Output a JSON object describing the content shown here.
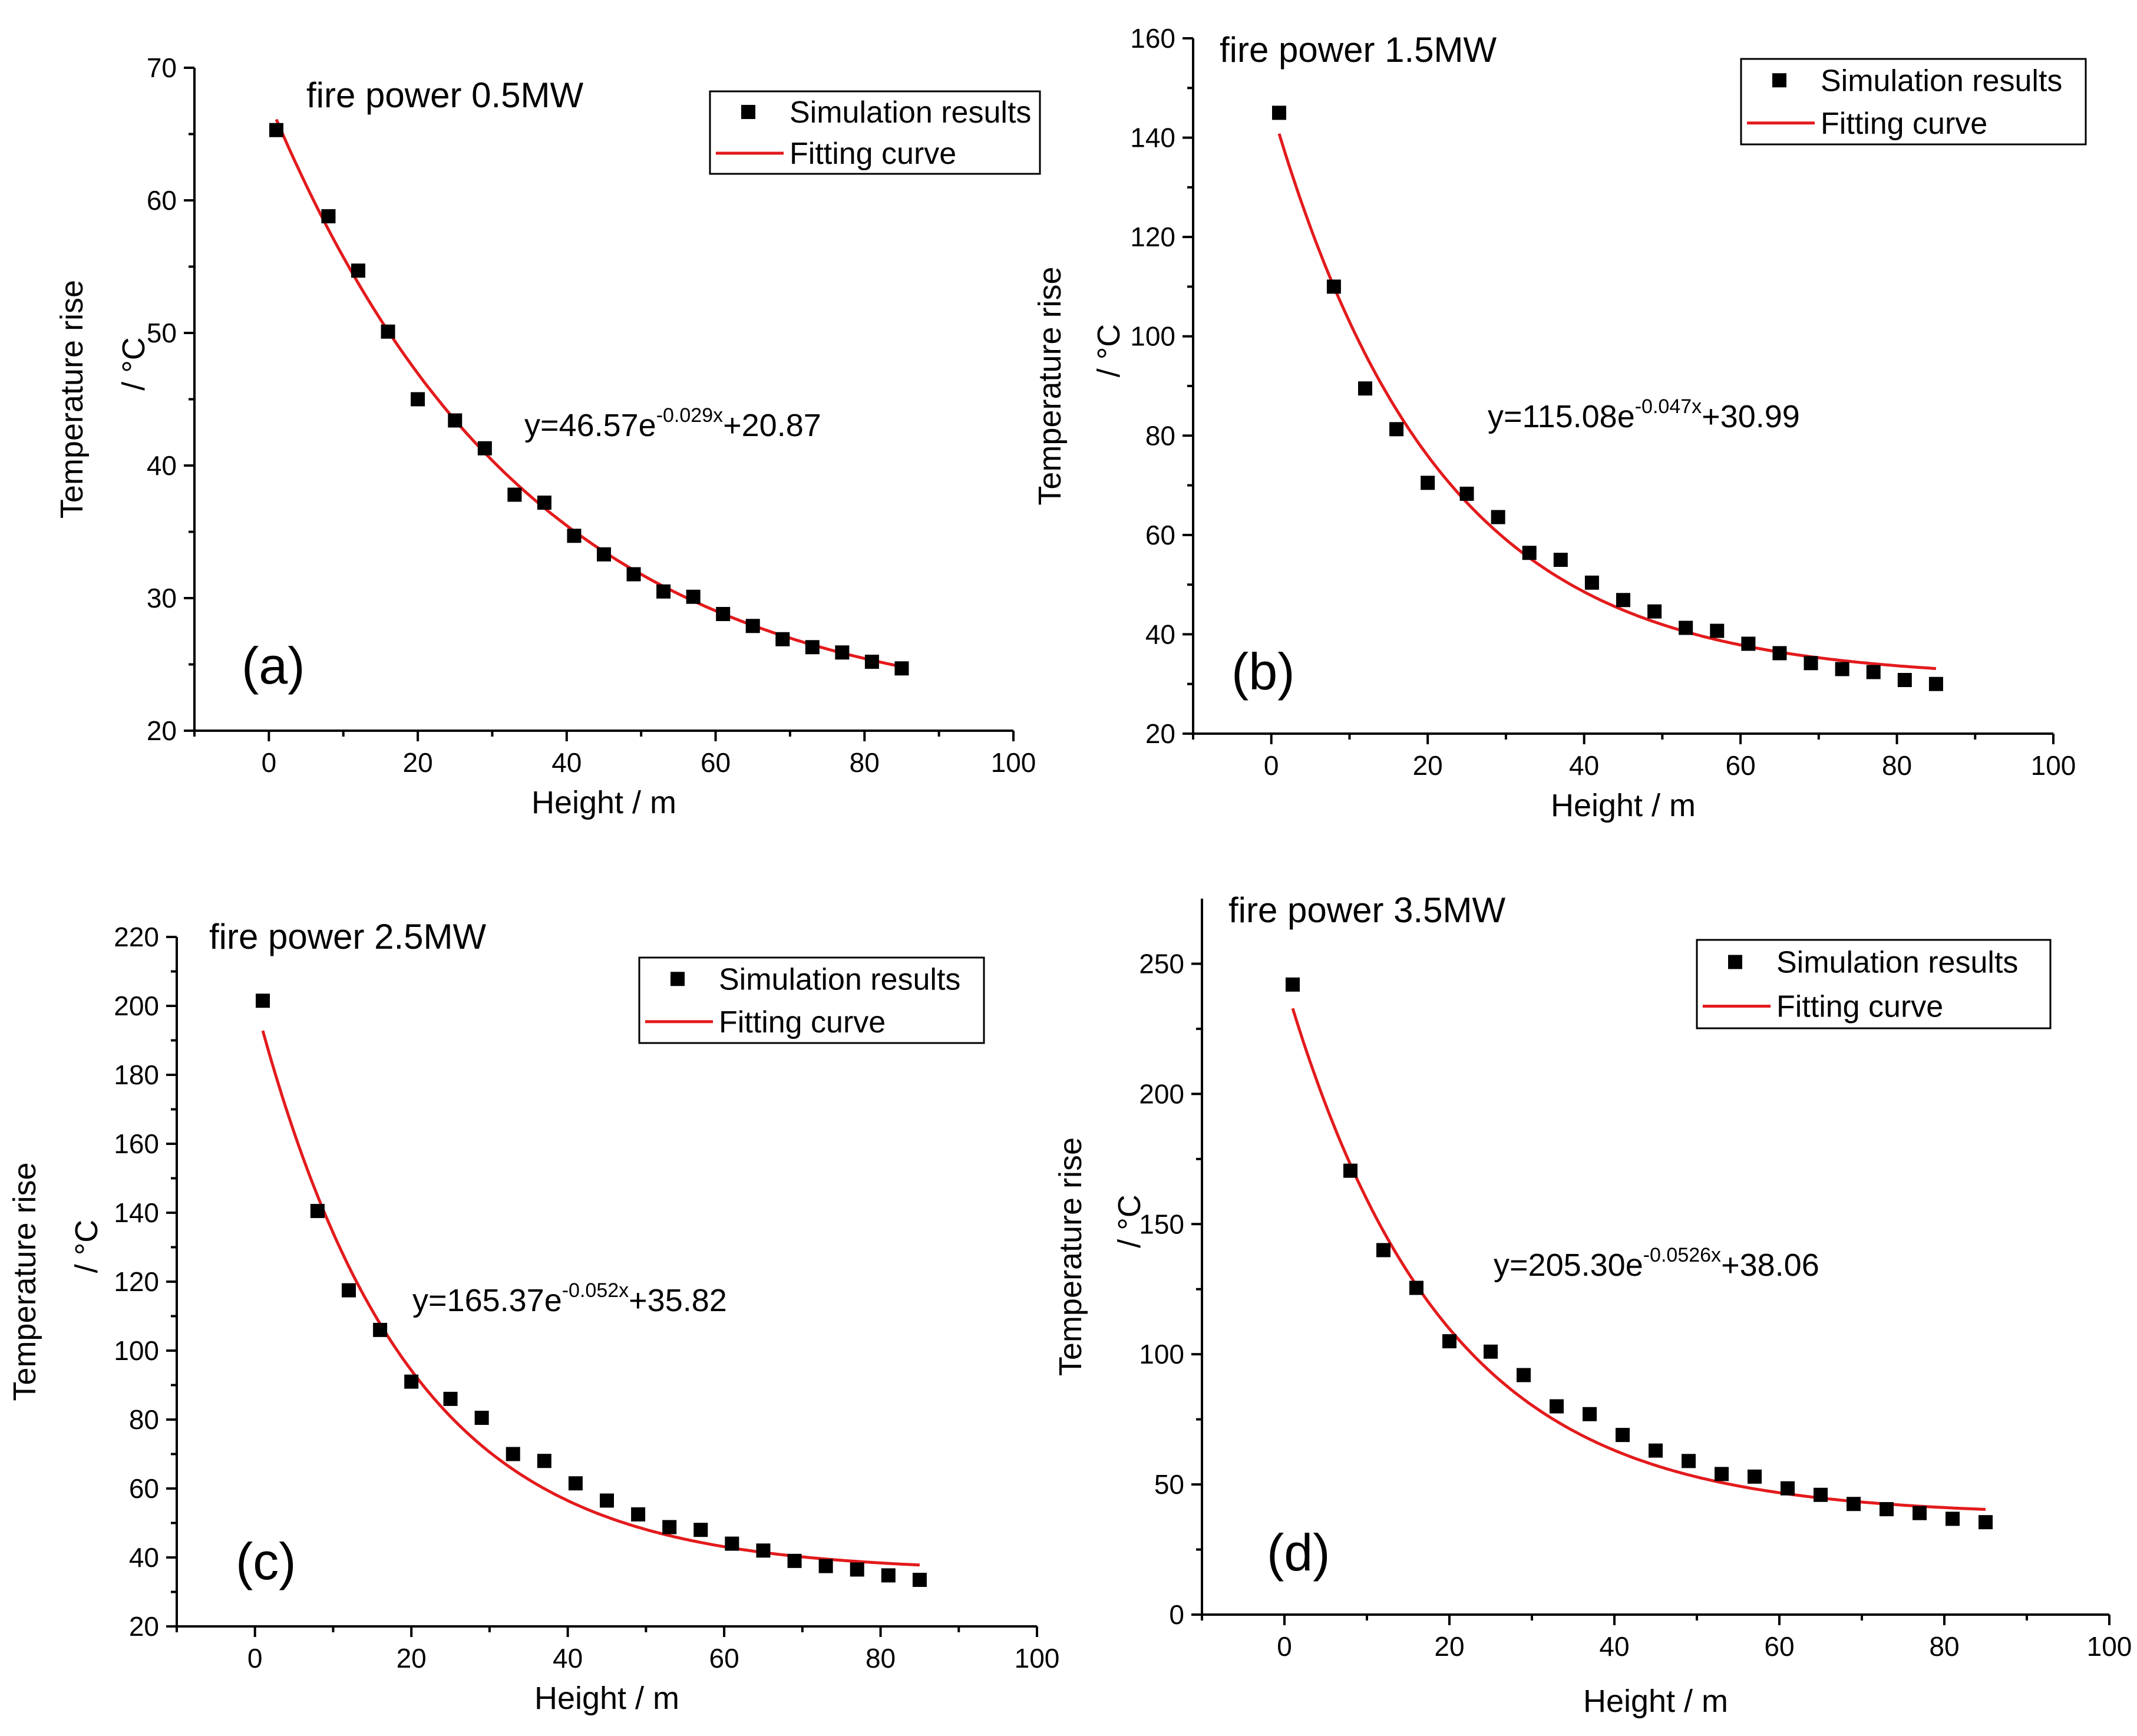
{
  "chart_data": [
    {
      "type": "scatter",
      "panel_label": "(a)",
      "title": "fire power  0.5MW",
      "xlabel": "Height / m",
      "ylabel": "Temperature rise",
      "yunit": "/ °C",
      "xlim": [
        -10,
        100
      ],
      "ylim": [
        20,
        70
      ],
      "xticks": [
        0,
        20,
        40,
        60,
        80,
        100
      ],
      "yticks": [
        20,
        30,
        40,
        50,
        60,
        70
      ],
      "legend": [
        "Simulation results",
        "Fitting curve"
      ],
      "equation": {
        "prefix": "y=46.57e",
        "exponent": "-0.029x",
        "suffix": "+20.87"
      },
      "fit": {
        "a": 46.57,
        "b": -0.029,
        "c": 20.87,
        "x_start": 1,
        "x_end": 85
      },
      "series": [
        {
          "name": "Simulation results",
          "x": [
            1,
            8,
            12,
            16,
            20,
            25,
            29,
            33,
            37,
            41,
            45,
            49,
            53,
            57,
            61,
            65,
            69,
            73,
            77,
            81,
            85
          ],
          "y": [
            65.3,
            58.8,
            54.7,
            50.1,
            45.0,
            43.4,
            41.3,
            37.8,
            37.2,
            34.7,
            33.3,
            31.8,
            30.5,
            30.1,
            28.8,
            27.9,
            26.9,
            26.3,
            25.9,
            25.2,
            24.7
          ]
        }
      ]
    },
    {
      "type": "scatter",
      "panel_label": "(b)",
      "title": "fire power  1.5MW",
      "xlabel": "Height / m",
      "ylabel": "Temperature rise",
      "yunit": "/ °C",
      "xlim": [
        -10,
        100
      ],
      "ylim": [
        20,
        160
      ],
      "xticks": [
        0,
        20,
        40,
        60,
        80,
        100
      ],
      "yticks": [
        20,
        40,
        60,
        80,
        100,
        120,
        140,
        160
      ],
      "legend": [
        "Simulation results",
        "Fitting curve"
      ],
      "equation": {
        "prefix": "y=115.08e",
        "exponent": "-0.047x",
        "suffix": "+30.99"
      },
      "fit": {
        "a": 115.08,
        "b": -0.047,
        "c": 30.99,
        "x_start": 1,
        "x_end": 85
      },
      "series": [
        {
          "name": "Simulation results",
          "x": [
            1,
            8,
            12,
            16,
            20,
            25,
            29,
            33,
            37,
            41,
            45,
            49,
            53,
            57,
            61,
            65,
            69,
            73,
            77,
            81,
            85
          ],
          "y": [
            145,
            110,
            89.5,
            81.3,
            70.5,
            68.3,
            63.6,
            56.4,
            55.0,
            50.4,
            46.9,
            44.6,
            41.3,
            40.7,
            38.1,
            36.2,
            34.2,
            33.0,
            32.4,
            30.8,
            30.0
          ]
        }
      ]
    },
    {
      "type": "scatter",
      "panel_label": "(c)",
      "title": "fire power  2.5MW",
      "xlabel": "Height / m",
      "ylabel": "Temperature rise",
      "yunit": "/ °C",
      "xlim": [
        -10,
        100
      ],
      "ylim": [
        20,
        220
      ],
      "xticks": [
        0,
        20,
        40,
        60,
        80,
        100
      ],
      "yticks": [
        20,
        40,
        60,
        80,
        100,
        120,
        140,
        160,
        180,
        200,
        220
      ],
      "legend": [
        "Simulation results",
        "Fitting curve"
      ],
      "equation": {
        "prefix": "y=165.37e",
        "exponent": "-0.052x",
        "suffix": "+35.82"
      },
      "fit": {
        "a": 165.37,
        "b": -0.052,
        "c": 35.82,
        "x_start": 1,
        "x_end": 85
      },
      "series": [
        {
          "name": "Simulation results",
          "x": [
            1,
            8,
            12,
            16,
            20,
            25,
            29,
            33,
            37,
            41,
            45,
            49,
            53,
            57,
            61,
            65,
            69,
            73,
            77,
            81,
            85
          ],
          "y": [
            201.5,
            140.5,
            117.5,
            106.0,
            91.0,
            86.0,
            80.5,
            70.0,
            68.0,
            61.5,
            56.5,
            52.5,
            48.8,
            48.0,
            44.0,
            42.0,
            39.0,
            37.5,
            36.5,
            34.8,
            33.5
          ]
        }
      ]
    },
    {
      "type": "scatter",
      "panel_label": "(d)",
      "title": "fire power  3.5MW",
      "xlabel": "Height / m",
      "ylabel": "Temperature rise",
      "yunit": "/ °C",
      "xlim": [
        -10,
        100
      ],
      "ylim": [
        0,
        275
      ],
      "xticks": [
        0,
        20,
        40,
        60,
        80,
        100
      ],
      "yticks": [
        0,
        50,
        100,
        150,
        200,
        250
      ],
      "legend": [
        "Simulation results",
        "Fitting curve"
      ],
      "equation": {
        "prefix": "y=205.30e",
        "exponent": "-0.0526x",
        "suffix": "+38.06"
      },
      "fit": {
        "a": 205.3,
        "b": -0.0526,
        "c": 38.06,
        "x_start": 1,
        "x_end": 85
      },
      "series": [
        {
          "name": "Simulation results",
          "x": [
            1,
            8,
            12,
            16,
            20,
            25,
            29,
            33,
            37,
            41,
            45,
            49,
            53,
            57,
            61,
            65,
            69,
            73,
            77,
            81,
            85
          ],
          "y": [
            242,
            170.5,
            140,
            125.5,
            105,
            101,
            92,
            80,
            77,
            69,
            63,
            59,
            54,
            53,
            48.5,
            46,
            42.5,
            40.5,
            39,
            36.8,
            35.5
          ]
        }
      ]
    }
  ],
  "colors": {
    "marker": "#000000",
    "fit_line": "#e31a1c",
    "axis": "#000000"
  }
}
